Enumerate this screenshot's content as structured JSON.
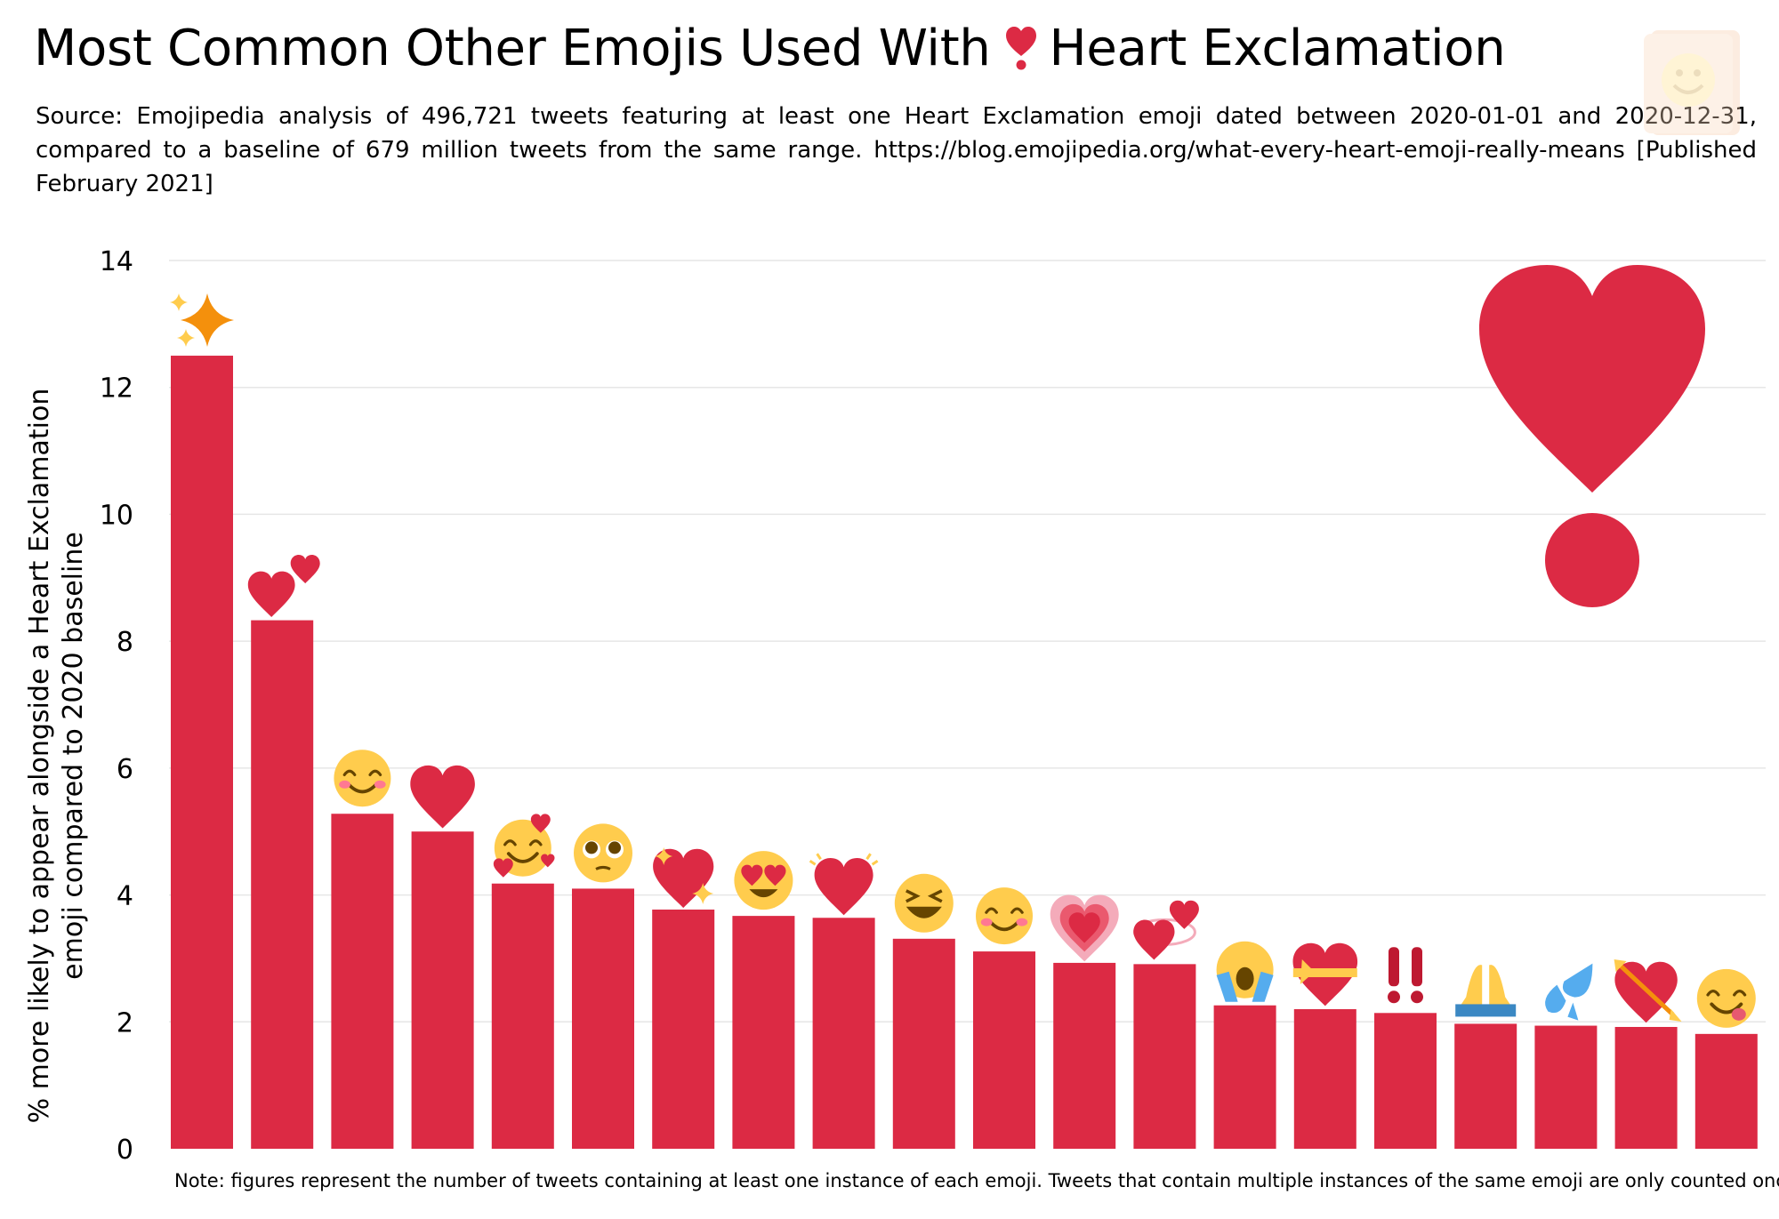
{
  "title": {
    "before": "Most Common Other Emojis Used With",
    "after": "Heart Exclamation",
    "icon": "heart-exclamation-icon"
  },
  "subtitle": "Source: Emojipedia analysis of 496,721 tweets featuring at least one Heart Exclamation emoji dated between 2020-01-01 and 2020-12-31, compared to a baseline of 679 million tweets from the same range. https://blog.emojipedia.org/what-every-heart-emoji-really-means [Published February 2021]",
  "note": "Note: figures represent the number of tweets containing at least one instance of each emoji. Tweets that contain multiple instances of the same emoji are only counted once.",
  "colors": {
    "bar": "#dc2a44",
    "grid": "#e6e6e6",
    "yellow": "#ffcc4d",
    "orange": "#f4900c",
    "blue": "#55acee"
  },
  "chart_data": {
    "type": "bar",
    "ylabel": "% more likely to appear alongside a Heart Exclamation emoji compared to 2020 baseline",
    "xlabel": "",
    "ylim": [
      0,
      14
    ],
    "yticks": [
      0,
      2,
      4,
      6,
      8,
      10,
      12,
      14
    ],
    "grid": true,
    "categories": [
      "sparkles",
      "two-hearts",
      "smiling-face-with-smiling-eyes",
      "red-heart",
      "smiling-face-with-hearts",
      "face-with-pleading-eyes",
      "sparkling-heart",
      "smiling-face-with-heart-eyes",
      "beating-heart",
      "grinning-squinting-face",
      "smiling-face",
      "growing-heart",
      "revolving-hearts",
      "loudly-crying-face",
      "heart-with-ribbon",
      "double-exclamation-mark",
      "folded-hands",
      "sweat-droplets",
      "heart-with-arrow",
      "face-savoring-food"
    ],
    "values": [
      12.5,
      8.33,
      5.28,
      5.0,
      4.18,
      4.1,
      3.77,
      3.67,
      3.64,
      3.31,
      3.11,
      2.93,
      2.91,
      2.26,
      2.2,
      2.14,
      1.97,
      1.94,
      1.92,
      1.81
    ]
  }
}
